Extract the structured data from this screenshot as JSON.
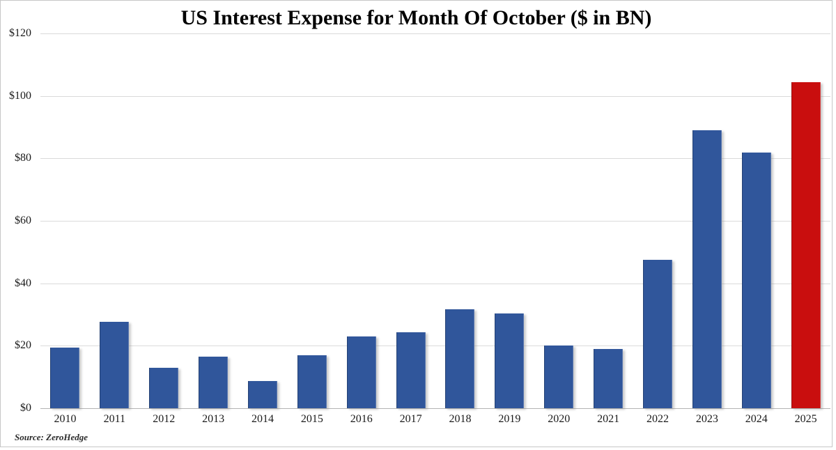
{
  "chart": {
    "title": "US Interest Expense for Month Of October ($ in BN)",
    "source": "Source: ZeroHedge"
  },
  "chart_data": {
    "type": "bar",
    "title": "US Interest Expense for Month Of October ($ in BN)",
    "categories": [
      "2010",
      "2011",
      "2012",
      "2013",
      "2014",
      "2015",
      "2016",
      "2017",
      "2018",
      "2019",
      "2020",
      "2021",
      "2022",
      "2023",
      "2024",
      "2025"
    ],
    "values": [
      19.4,
      27.7,
      12.9,
      16.4,
      8.7,
      16.9,
      23.0,
      24.4,
      31.7,
      30.3,
      20.0,
      18.9,
      47.5,
      88.9,
      81.9,
      104.4
    ],
    "unit": "$ BN",
    "xlabel": "",
    "ylabel": "",
    "ylim": [
      0,
      120
    ],
    "y_tick_step": 20,
    "y_tick_labels": [
      "$120",
      "$100",
      "$80",
      "$60",
      "$40",
      "$20",
      "$0"
    ],
    "grid": true,
    "legend": false,
    "bar_color": "#30569B",
    "highlight_category": "2025",
    "highlight_color": "#C90E0E",
    "annotation": "Source: ZeroHedge"
  }
}
